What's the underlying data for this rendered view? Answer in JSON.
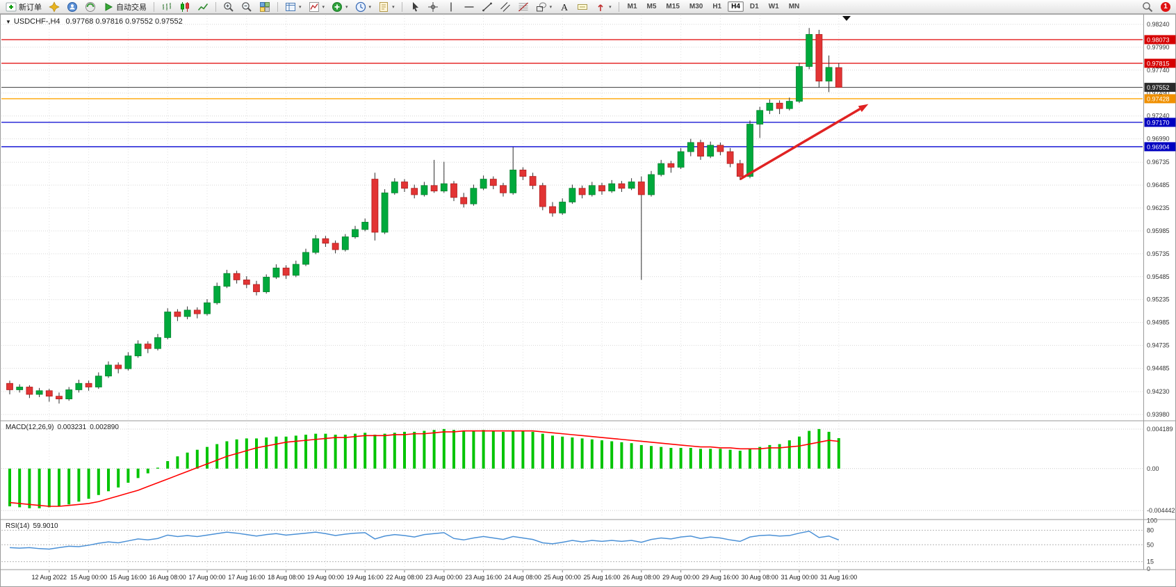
{
  "colors": {
    "bull": "#00A93C",
    "bull_border": "#00832C",
    "bear": "#E23434",
    "bear_border": "#B01F1F",
    "wick": "#2e2e2e",
    "grid": "#d6d6d6",
    "vgrid": "#e2e2e2",
    "macd_hist": "#00C400",
    "macd_signal": "#FF0000",
    "rsi_line": "#4A90D6",
    "scale_text": "#333333",
    "arrow": "#E02222"
  },
  "toolbar": {
    "groups": [
      {
        "items": [
          {
            "name": "new-order-button",
            "icon": "new-order",
            "label": "新订单"
          },
          {
            "name": "compass-button",
            "icon": "compass"
          },
          {
            "name": "profile-button",
            "icon": "profile"
          },
          {
            "name": "market-watch-button",
            "icon": "market"
          },
          {
            "name": "auto-trading-button",
            "icon": "auto-trading",
            "label": "自动交易"
          }
        ]
      },
      {
        "items": [
          {
            "name": "bars-chart-button",
            "icon": "bars-chart"
          },
          {
            "name": "candles-chart-button",
            "icon": "candles-chart"
          },
          {
            "name": "line-chart-button",
            "icon": "line-chart"
          }
        ]
      },
      {
        "items": [
          {
            "name": "zoom-in-button",
            "icon": "zoom-in"
          },
          {
            "name": "zoom-out-button",
            "icon": "zoom-out"
          },
          {
            "name": "tile-windows-button",
            "icon": "tile-windows"
          }
        ]
      },
      {
        "items": [
          {
            "name": "data-window-button",
            "icon": "data-window",
            "dropdown": true
          },
          {
            "name": "indicator-window-button",
            "icon": "indicator-list",
            "dropdown": true
          },
          {
            "name": "add-indicator-button",
            "icon": "add-indicator",
            "dropdown": true
          },
          {
            "name": "period-button",
            "icon": "clock",
            "dropdown": true
          },
          {
            "name": "template-button",
            "icon": "template",
            "dropdown": true
          }
        ]
      },
      {
        "items": [
          {
            "name": "cursor-button",
            "icon": "cursor"
          },
          {
            "name": "crosshair-button",
            "icon": "crosshair"
          },
          {
            "name": "vertical-line-button",
            "icon": "vline"
          },
          {
            "name": "horizontal-line-button",
            "icon": "hline"
          },
          {
            "name": "trendline-button",
            "icon": "trendline"
          },
          {
            "name": "channel-button",
            "icon": "channel"
          },
          {
            "name": "fibonacci-button",
            "icon": "fibonacci"
          },
          {
            "name": "shapes-button",
            "icon": "shapes",
            "dropdown": true
          },
          {
            "name": "text-button",
            "icon": "text"
          },
          {
            "name": "label-button",
            "icon": "label-obj"
          },
          {
            "name": "arrows-button",
            "icon": "arrows-obj",
            "dropdown": true
          }
        ]
      }
    ],
    "timeframes": [
      "M1",
      "M5",
      "M15",
      "M30",
      "H1",
      "H4",
      "D1",
      "W1",
      "MN"
    ],
    "active_timeframe": "H4",
    "notification_count": "1"
  },
  "chart": {
    "symbol_period": "USDCHF-,H4",
    "ohlc_text": "0.97768 0.97816 0.97552 0.97552"
  },
  "price_scale": [
    "0.98240",
    "0.97990",
    "0.97740",
    "0.97490",
    "0.97240",
    "0.96990",
    "0.96735",
    "0.96485",
    "0.96235",
    "0.95985",
    "0.95735",
    "0.95485",
    "0.95235",
    "0.94985",
    "0.94735",
    "0.94485",
    "0.94230",
    "0.93980"
  ],
  "levels": [
    {
      "label": "0.98073",
      "value": 0.98073,
      "type": "resistance-line",
      "line": "#E00000",
      "badge": "#D60000"
    },
    {
      "label": "0.97815",
      "value": 0.97815,
      "type": "resistance-line",
      "line": "#E00000",
      "badge": "#D60000"
    },
    {
      "label": "0.97552",
      "value": 0.97552,
      "type": "current-price-line",
      "line": "#3A3A3A",
      "badge": "#2B2B2B"
    },
    {
      "label": "0.97428",
      "value": 0.97428,
      "type": "pivot-line",
      "line": "#FFA500",
      "badge": "#F09000"
    },
    {
      "label": "0.97170",
      "value": 0.9717,
      "type": "support-line",
      "line": "#0000D0",
      "badge": "#0000C0"
    },
    {
      "label": "0.96904",
      "value": 0.96904,
      "type": "support-line",
      "line": "#0000D0",
      "badge": "#0000C0"
    }
  ],
  "indicators": {
    "macd": {
      "name": "MACD(12,26,9)",
      "value_main": "0.003231",
      "value_signal": "0.002890",
      "scale_labels": [
        "0.004189",
        "0.00",
        "-0.004442"
      ],
      "scale_values": [
        0.004189,
        0,
        -0.004442
      ]
    },
    "rsi": {
      "name": "RSI(14)",
      "value": "59.9010",
      "scale_labels": [
        "100",
        "80",
        "50",
        "15",
        "0"
      ],
      "scale_values": [
        100,
        80,
        50,
        15,
        0
      ],
      "level_values": [
        80,
        50,
        15
      ]
    }
  },
  "time_axis": [
    "12 Aug 2022",
    "15 Aug 00:00",
    "15 Aug 16:00",
    "16 Aug 08:00",
    "17 Aug 00:00",
    "17 Aug 16:00",
    "18 Aug 08:00",
    "19 Aug 00:00",
    "19 Aug 16:00",
    "22 Aug 08:00",
    "23 Aug 00:00",
    "23 Aug 16:00",
    "24 Aug 08:00",
    "25 Aug 00:00",
    "25 Aug 16:00",
    "26 Aug 08:00",
    "29 Aug 00:00",
    "29 Aug 16:00",
    "30 Aug 08:00",
    "31 Aug 00:00",
    "31 Aug 16:00"
  ],
  "chart_data": {
    "type": "candlestick",
    "symbol": "USDCHF-",
    "timeframe": "H4",
    "title": "USDCHF-,H4",
    "y_axis_range": [
      0.9398,
      0.9824
    ],
    "current_candle": {
      "open": 0.97768,
      "high": 0.97816,
      "low": 0.97552,
      "close": 0.97552
    },
    "candles": [
      [
        0.9432,
        0.9435,
        0.942,
        0.9425
      ],
      [
        0.9425,
        0.9431,
        0.9422,
        0.9428
      ],
      [
        0.9428,
        0.943,
        0.9416,
        0.942
      ],
      [
        0.942,
        0.9427,
        0.9417,
        0.9424
      ],
      [
        0.9424,
        0.9426,
        0.9412,
        0.9418
      ],
      [
        0.9418,
        0.9422,
        0.941,
        0.9415
      ],
      [
        0.9415,
        0.9428,
        0.9413,
        0.9425
      ],
      [
        0.9425,
        0.9436,
        0.9422,
        0.9432
      ],
      [
        0.9432,
        0.9435,
        0.9424,
        0.9428
      ],
      [
        0.9428,
        0.9444,
        0.9426,
        0.944
      ],
      [
        0.944,
        0.9456,
        0.9438,
        0.9452
      ],
      [
        0.9452,
        0.9455,
        0.9443,
        0.9448
      ],
      [
        0.9448,
        0.9466,
        0.9446,
        0.9462
      ],
      [
        0.9462,
        0.9479,
        0.946,
        0.9475
      ],
      [
        0.9475,
        0.9478,
        0.9465,
        0.947
      ],
      [
        0.947,
        0.9486,
        0.9468,
        0.9482
      ],
      [
        0.9482,
        0.9514,
        0.948,
        0.951
      ],
      [
        0.951,
        0.9513,
        0.95,
        0.9505
      ],
      [
        0.9505,
        0.9516,
        0.9502,
        0.9512
      ],
      [
        0.9512,
        0.9515,
        0.9503,
        0.9508
      ],
      [
        0.9508,
        0.9524,
        0.9506,
        0.952
      ],
      [
        0.952,
        0.9542,
        0.9518,
        0.9538
      ],
      [
        0.9538,
        0.9556,
        0.9536,
        0.9552
      ],
      [
        0.9552,
        0.9555,
        0.9541,
        0.9545
      ],
      [
        0.9545,
        0.9549,
        0.9536,
        0.954
      ],
      [
        0.954,
        0.9544,
        0.9528,
        0.9532
      ],
      [
        0.9532,
        0.9551,
        0.953,
        0.9548
      ],
      [
        0.9548,
        0.9562,
        0.9546,
        0.9558
      ],
      [
        0.9558,
        0.9561,
        0.9546,
        0.955
      ],
      [
        0.955,
        0.9566,
        0.9548,
        0.9562
      ],
      [
        0.9562,
        0.9579,
        0.956,
        0.9575
      ],
      [
        0.9575,
        0.9594,
        0.9573,
        0.959
      ],
      [
        0.959,
        0.9593,
        0.9581,
        0.9585
      ],
      [
        0.9585,
        0.9588,
        0.9574,
        0.9578
      ],
      [
        0.9578,
        0.9595,
        0.9576,
        0.9592
      ],
      [
        0.9592,
        0.9604,
        0.959,
        0.96
      ],
      [
        0.96,
        0.9612,
        0.9598,
        0.9608
      ],
      [
        0.9655,
        0.9662,
        0.9588,
        0.9597
      ],
      [
        0.9597,
        0.9644,
        0.9595,
        0.964
      ],
      [
        0.964,
        0.9656,
        0.9638,
        0.9652
      ],
      [
        0.9652,
        0.9655,
        0.9641,
        0.9645
      ],
      [
        0.9645,
        0.9649,
        0.9634,
        0.9638
      ],
      [
        0.9638,
        0.9652,
        0.9636,
        0.9648
      ],
      [
        0.9648,
        0.9676,
        0.964,
        0.9642
      ],
      [
        0.9642,
        0.9674,
        0.964,
        0.965
      ],
      [
        0.965,
        0.9653,
        0.9631,
        0.9635
      ],
      [
        0.9635,
        0.964,
        0.9624,
        0.9628
      ],
      [
        0.9628,
        0.9649,
        0.9626,
        0.9645
      ],
      [
        0.9645,
        0.9659,
        0.9643,
        0.9655
      ],
      [
        0.9655,
        0.9658,
        0.9644,
        0.9648
      ],
      [
        0.9648,
        0.9651,
        0.9636,
        0.964
      ],
      [
        0.964,
        0.969,
        0.9638,
        0.9665
      ],
      [
        0.9665,
        0.9668,
        0.9654,
        0.9658
      ],
      [
        0.9658,
        0.9662,
        0.9644,
        0.9648
      ],
      [
        0.9648,
        0.9651,
        0.9621,
        0.9625
      ],
      [
        0.9625,
        0.963,
        0.9614,
        0.9618
      ],
      [
        0.9618,
        0.9634,
        0.9616,
        0.963
      ],
      [
        0.963,
        0.9649,
        0.9628,
        0.9645
      ],
      [
        0.9645,
        0.9648,
        0.9634,
        0.9638
      ],
      [
        0.9638,
        0.9652,
        0.9636,
        0.9648
      ],
      [
        0.9648,
        0.9651,
        0.9638,
        0.9642
      ],
      [
        0.9642,
        0.9654,
        0.964,
        0.965
      ],
      [
        0.965,
        0.9653,
        0.9641,
        0.9645
      ],
      [
        0.9645,
        0.9656,
        0.9643,
        0.9652
      ],
      [
        0.9652,
        0.9658,
        0.9545,
        0.9638
      ],
      [
        0.9638,
        0.9664,
        0.9636,
        0.966
      ],
      [
        0.966,
        0.9676,
        0.9658,
        0.9672
      ],
      [
        0.9672,
        0.9675,
        0.9662,
        0.9668
      ],
      [
        0.9668,
        0.9689,
        0.9666,
        0.9685
      ],
      [
        0.9685,
        0.9699,
        0.968,
        0.9695
      ],
      [
        0.9695,
        0.9698,
        0.9676,
        0.968
      ],
      [
        0.968,
        0.9696,
        0.9678,
        0.9692
      ],
      [
        0.9692,
        0.9695,
        0.9681,
        0.9685
      ],
      [
        0.9685,
        0.9689,
        0.9668,
        0.9672
      ],
      [
        0.9672,
        0.9676,
        0.9654,
        0.9658
      ],
      [
        0.9658,
        0.9719,
        0.9656,
        0.9715
      ],
      [
        0.9715,
        0.9734,
        0.97,
        0.973
      ],
      [
        0.973,
        0.9742,
        0.9726,
        0.9738
      ],
      [
        0.9738,
        0.9741,
        0.9726,
        0.9732
      ],
      [
        0.9732,
        0.9744,
        0.973,
        0.974
      ],
      [
        0.974,
        0.9782,
        0.9738,
        0.9778
      ],
      [
        0.9778,
        0.982,
        0.9775,
        0.9813
      ],
      [
        0.9813,
        0.9818,
        0.9755,
        0.9762
      ],
      [
        0.9762,
        0.979,
        0.975,
        0.9777
      ],
      [
        0.97768,
        0.97816,
        0.97552,
        0.97552
      ]
    ],
    "macd_histogram": [
      -0.004,
      -0.0041,
      -0.0042,
      -0.0042,
      -0.0041,
      -0.004,
      -0.0038,
      -0.0035,
      -0.0032,
      -0.0028,
      -0.0024,
      -0.002,
      -0.0015,
      -0.001,
      -0.0005,
      0.0001,
      0.0008,
      0.0013,
      0.0017,
      0.002,
      0.0023,
      0.0026,
      0.0029,
      0.0031,
      0.0032,
      0.0032,
      0.0033,
      0.0034,
      0.0034,
      0.0035,
      0.0036,
      0.0037,
      0.0037,
      0.0036,
      0.0036,
      0.0037,
      0.0038,
      0.0036,
      0.0037,
      0.0038,
      0.0039,
      0.0039,
      0.004,
      0.0041,
      0.0042,
      0.0041,
      0.004,
      0.004,
      0.0041,
      0.004,
      0.0039,
      0.004,
      0.004,
      0.0039,
      0.0037,
      0.0035,
      0.0034,
      0.0033,
      0.0032,
      0.0031,
      0.003,
      0.0029,
      0.0028,
      0.0027,
      0.0025,
      0.0024,
      0.0023,
      0.0022,
      0.0022,
      0.0022,
      0.0021,
      0.0021,
      0.0021,
      0.002,
      0.0019,
      0.0021,
      0.0023,
      0.0025,
      0.0026,
      0.003,
      0.0034,
      0.004,
      0.0042,
      0.0039,
      0.003231
    ],
    "macd_signal": [
      -0.0036,
      -0.0037,
      -0.0038,
      -0.0039,
      -0.004,
      -0.004,
      -0.0039,
      -0.0038,
      -0.0037,
      -0.0035,
      -0.0032,
      -0.0029,
      -0.0026,
      -0.0023,
      -0.0019,
      -0.0015,
      -0.0011,
      -0.0007,
      -0.0003,
      0.0001,
      0.0005,
      0.0009,
      0.0013,
      0.0016,
      0.0019,
      0.0022,
      0.0024,
      0.0026,
      0.0028,
      0.0029,
      0.003,
      0.0031,
      0.0032,
      0.0033,
      0.0033,
      0.0034,
      0.0035,
      0.0035,
      0.0035,
      0.0036,
      0.0036,
      0.0037,
      0.0037,
      0.0038,
      0.0039,
      0.0039,
      0.004,
      0.004,
      0.004,
      0.004,
      0.004,
      0.004,
      0.004,
      0.004,
      0.0039,
      0.0038,
      0.0037,
      0.0036,
      0.0035,
      0.0034,
      0.0033,
      0.0032,
      0.0031,
      0.003,
      0.0029,
      0.0028,
      0.0027,
      0.0026,
      0.0025,
      0.0024,
      0.0023,
      0.0023,
      0.0022,
      0.0022,
      0.0021,
      0.0021,
      0.0021,
      0.0022,
      0.0022,
      0.0023,
      0.0024,
      0.0026,
      0.0028,
      0.003,
      0.00289
    ],
    "rsi": [
      44,
      43,
      44,
      42,
      41,
      44,
      47,
      46,
      49,
      53,
      56,
      54,
      58,
      62,
      60,
      63,
      70,
      67,
      69,
      67,
      70,
      73,
      76,
      74,
      71,
      68,
      71,
      73,
      70,
      72,
      74,
      76,
      73,
      69,
      72,
      74,
      75,
      62,
      68,
      71,
      69,
      66,
      71,
      73,
      75,
      63,
      60,
      64,
      67,
      64,
      61,
      67,
      64,
      61,
      54,
      52,
      55,
      59,
      56,
      59,
      57,
      59,
      57,
      59,
      55,
      61,
      64,
      62,
      66,
      68,
      63,
      66,
      64,
      60,
      57,
      66,
      69,
      70,
      68,
      69,
      74,
      78,
      65,
      68,
      59.9
    ],
    "annotations": {
      "trend-arrow": {
        "from_index": 74,
        "from_price": 0.9655,
        "to_index": 87,
        "to_price": 0.9737,
        "color": "#E02222"
      }
    }
  }
}
